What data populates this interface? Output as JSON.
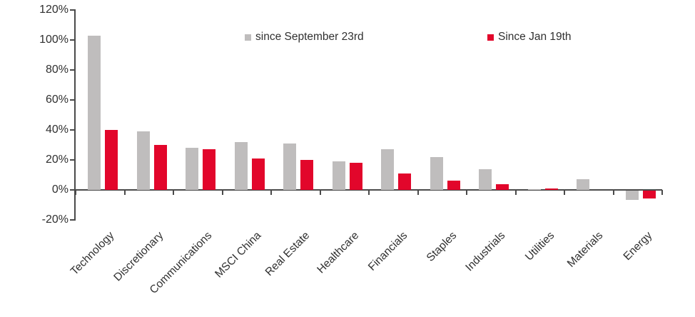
{
  "chart_data": {
    "type": "bar",
    "title": "",
    "xlabel": "",
    "ylabel": "",
    "ylim": [
      -20,
      120
    ],
    "yticks": [
      120,
      100,
      80,
      60,
      40,
      20,
      0,
      -20
    ],
    "ytick_suffix": "%",
    "grid": false,
    "legend_position": "top-center",
    "categories": [
      "Technology",
      "Discretionary",
      "Communications",
      "MSCI China",
      "Real Estate",
      "Healthcare",
      "Financials",
      "Staples",
      "Industrials",
      "Utilities",
      "Materials",
      "Energy"
    ],
    "series": [
      {
        "name": "since September 23rd",
        "color": "#bfbdbd",
        "values": [
          103,
          39,
          28,
          32,
          31,
          19,
          27,
          22,
          14,
          0.5,
          7,
          -6
        ]
      },
      {
        "name": "Since Jan 19th",
        "color": "#e2062b",
        "values": [
          40,
          30,
          27,
          21,
          20,
          18,
          11,
          6,
          4,
          1,
          0,
          -5
        ]
      }
    ]
  }
}
